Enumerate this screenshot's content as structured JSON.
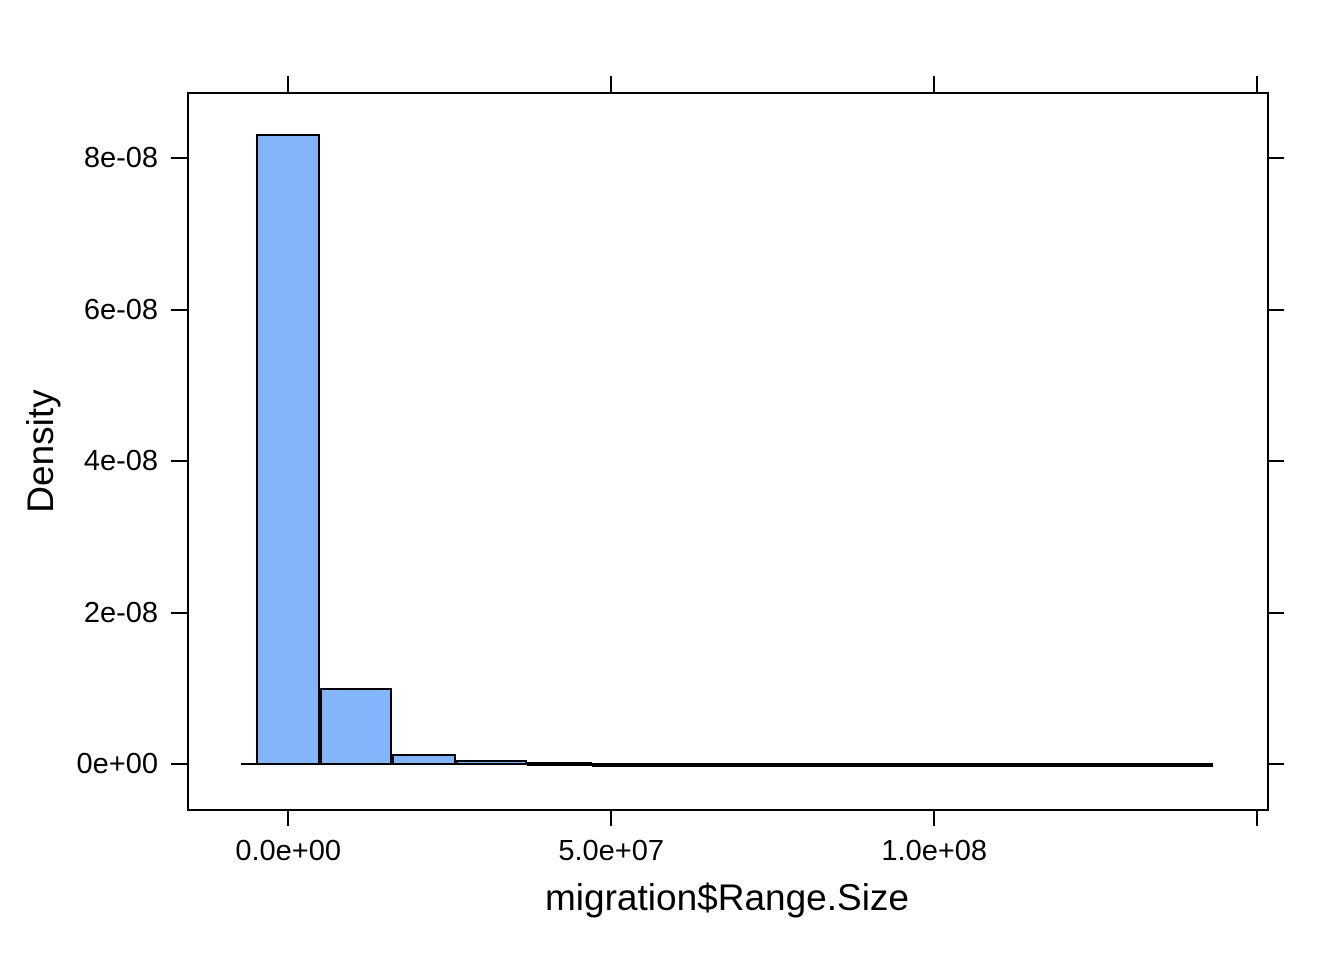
{
  "chart_data": {
    "type": "bar",
    "subtype": "histogram",
    "title": "",
    "xlabel": "migration$Range.Size",
    "ylabel": "Density",
    "grid": false,
    "legend": null,
    "xlim": [
      -15500000.0,
      151500000.0
    ],
    "ylim": [
      -5.9e-09,
      8.86e-08
    ],
    "x_ticks": [
      {
        "v": 0,
        "label": "0.0e+00"
      },
      {
        "v": 50000000.0,
        "label": "5.0e+07"
      },
      {
        "v": 100000000.0,
        "label": "1.0e+08"
      },
      {
        "v": 150000000.0,
        "label": ""
      }
    ],
    "y_ticks": [
      {
        "v": 0,
        "label": "0e+00"
      },
      {
        "v": 2e-08,
        "label": "2e-08"
      },
      {
        "v": 4e-08,
        "label": "4e-08"
      },
      {
        "v": 6e-08,
        "label": "6e-08"
      },
      {
        "v": 8e-08,
        "label": "8e-08"
      }
    ],
    "bins": [
      {
        "x0": -5000000.0,
        "x1": 5000000.0,
        "density": 8.3e-08
      },
      {
        "x0": 5000000.0,
        "x1": 16000000.0,
        "density": 1e-08
      },
      {
        "x0": 16000000.0,
        "x1": 26000000.0,
        "density": 1.2e-09
      },
      {
        "x0": 26000000.0,
        "x1": 37000000.0,
        "density": 5e-10
      },
      {
        "x0": 37000000.0,
        "x1": 47000000.0,
        "density": 2e-10
      },
      {
        "x0": 47000000.0,
        "x1": 143200000.0,
        "density": 0
      }
    ],
    "zero_line_x": [
      -7300000.0,
      143200000.0
    ],
    "colors": {
      "bar_fill": "#84B5FB",
      "bar_border": "#000000",
      "axis": "#000000",
      "background": "#FFFFFF"
    }
  }
}
